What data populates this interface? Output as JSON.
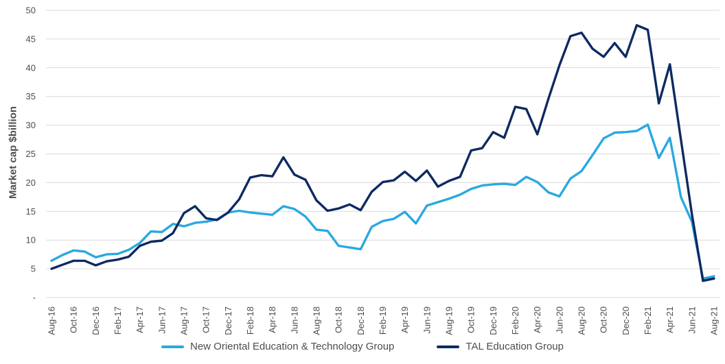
{
  "chart_data": {
    "type": "line",
    "title": "",
    "xlabel": "",
    "ylabel": "Market cap $billion",
    "ylim": [
      0,
      50
    ],
    "grid": "horizontal",
    "legend_position": "bottom",
    "x_tick_step": 2,
    "months": [
      "Aug-16",
      "Sep-16",
      "Oct-16",
      "Nov-16",
      "Dec-16",
      "Jan-17",
      "Feb-17",
      "Mar-17",
      "Apr-17",
      "May-17",
      "Jun-17",
      "Jul-17",
      "Aug-17",
      "Sep-17",
      "Oct-17",
      "Nov-17",
      "Dec-17",
      "Jan-18",
      "Feb-18",
      "Mar-18",
      "Apr-18",
      "May-18",
      "Jun-18",
      "Jul-18",
      "Aug-18",
      "Sep-18",
      "Oct-18",
      "Nov-18",
      "Dec-18",
      "Jan-19",
      "Feb-19",
      "Mar-19",
      "Apr-19",
      "May-19",
      "Jun-19",
      "Jul-19",
      "Aug-19",
      "Sep-19",
      "Oct-19",
      "Nov-19",
      "Dec-19",
      "Jan-20",
      "Feb-20",
      "Mar-20",
      "Apr-20",
      "May-20",
      "Jun-20",
      "Jul-20",
      "Aug-20",
      "Sep-20",
      "Oct-20",
      "Nov-20",
      "Dec-20",
      "Jan-21",
      "Feb-21",
      "Mar-21",
      "Apr-21",
      "May-21",
      "Jun-21",
      "Jul-21",
      "Aug-21"
    ],
    "y_ticks": {
      "values": [
        0,
        5,
        10,
        15,
        20,
        25,
        30,
        35,
        40,
        45,
        50
      ],
      "labels": [
        "-",
        "5",
        "10",
        "15",
        "20",
        "25",
        "30",
        "35",
        "40",
        "45",
        "50"
      ]
    },
    "series": [
      {
        "name": "New Oriental Education & Technology Group",
        "color": "#29a9e0",
        "values": [
          6.4,
          7.4,
          8.2,
          8.0,
          7.0,
          7.5,
          7.6,
          8.3,
          9.5,
          11.5,
          11.4,
          12.8,
          12.4,
          13.0,
          13.2,
          13.6,
          14.8,
          15.1,
          14.8,
          14.6,
          14.4,
          15.9,
          15.4,
          14.1,
          11.8,
          11.6,
          9.0,
          8.7,
          8.4,
          12.3,
          13.3,
          13.7,
          14.9,
          12.9,
          16.0,
          16.6,
          17.2,
          17.9,
          18.9,
          19.5,
          19.7,
          19.8,
          19.6,
          21.0,
          20.1,
          18.3,
          17.6,
          20.7,
          22.0,
          24.8,
          27.7,
          28.7,
          28.8,
          29.0,
          30.1,
          24.3,
          27.8,
          17.5,
          13.2,
          3.3,
          3.7
        ]
      },
      {
        "name": "TAL Education Group",
        "color": "#0d2a61",
        "values": [
          5.0,
          5.7,
          6.4,
          6.4,
          5.6,
          6.3,
          6.6,
          7.1,
          9.0,
          9.7,
          9.9,
          11.2,
          14.7,
          15.9,
          13.8,
          13.5,
          14.8,
          17.1,
          20.9,
          21.3,
          21.1,
          24.4,
          21.4,
          20.5,
          16.9,
          15.1,
          15.5,
          16.2,
          15.2,
          18.4,
          20.1,
          20.4,
          21.9,
          20.3,
          22.1,
          19.3,
          20.3,
          21.0,
          25.6,
          26.0,
          28.8,
          27.8,
          33.2,
          32.8,
          28.4,
          34.6,
          40.4,
          45.5,
          46.1,
          43.3,
          41.9,
          44.3,
          41.9,
          47.4,
          46.6,
          33.8,
          40.6,
          27.5,
          14.5,
          2.9,
          3.3
        ]
      }
    ]
  },
  "colors": {
    "grid": "#d9d9d9",
    "tick_text": "#4d4d4d",
    "background": "#ffffff"
  }
}
